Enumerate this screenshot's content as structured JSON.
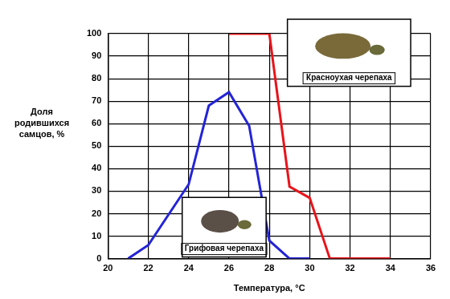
{
  "chart_data": {
    "type": "line",
    "x_label": "Температура, °C",
    "y_label": "Доля родившихся самцов, %",
    "series": [
      {
        "name": "Грифовая черепаха",
        "color": "#2424d8",
        "x": [
          21,
          22,
          24,
          25,
          26,
          27,
          28,
          29,
          30
        ],
        "values": [
          0,
          6,
          33,
          68,
          74,
          59,
          8,
          0,
          0
        ]
      },
      {
        "name": "Красноухая черепаха",
        "color": "#e8141a",
        "x": [
          26,
          28,
          29,
          30,
          31,
          34
        ],
        "values": [
          100,
          100,
          32,
          27,
          0,
          0
        ]
      }
    ],
    "xlim": [
      20,
      36
    ],
    "xticks": [
      20,
      22,
      24,
      26,
      28,
      30,
      32,
      34,
      36
    ],
    "ylim": [
      0,
      100
    ],
    "yticks": [
      0,
      10,
      20,
      30,
      40,
      50,
      60,
      70,
      80,
      90,
      100
    ],
    "grid": true
  }
}
